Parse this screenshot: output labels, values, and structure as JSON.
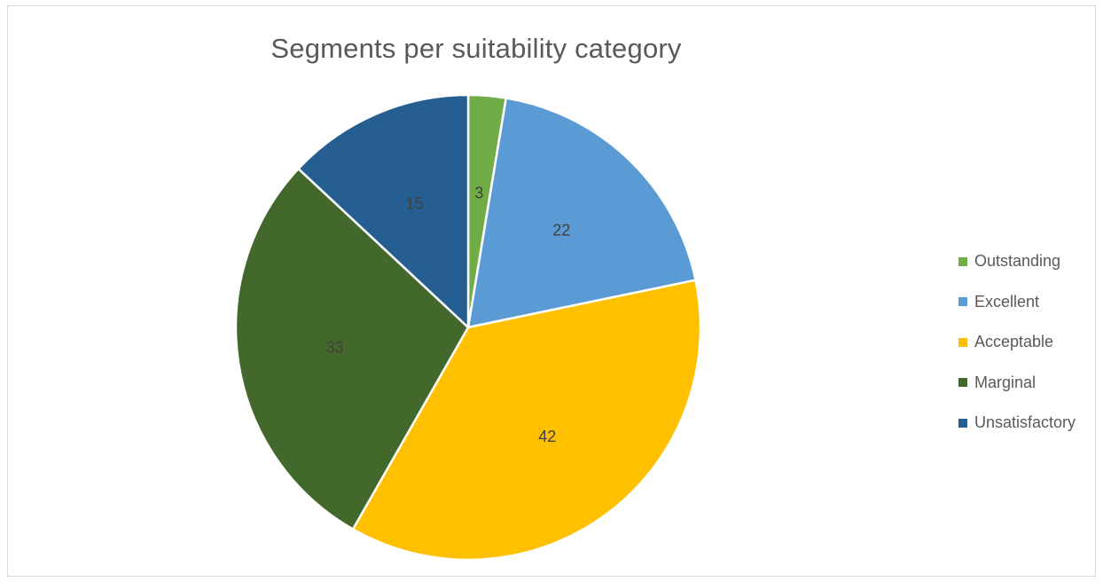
{
  "chart_data": {
    "type": "pie",
    "title": "Segments per suitability category",
    "categories": [
      "Outstanding",
      "Excellent",
      "Acceptable",
      "Marginal",
      "Unsatisfactory"
    ],
    "values": [
      3,
      22,
      42,
      33,
      15
    ],
    "colors": [
      "#70ad47",
      "#5b9bd5",
      "#ffc000",
      "#43682b",
      "#255e91"
    ],
    "data_labels": [
      "3",
      "22",
      "42",
      "33",
      "15"
    ],
    "legend_position": "right",
    "start_angle": "12 o'clock",
    "direction": "clockwise"
  }
}
